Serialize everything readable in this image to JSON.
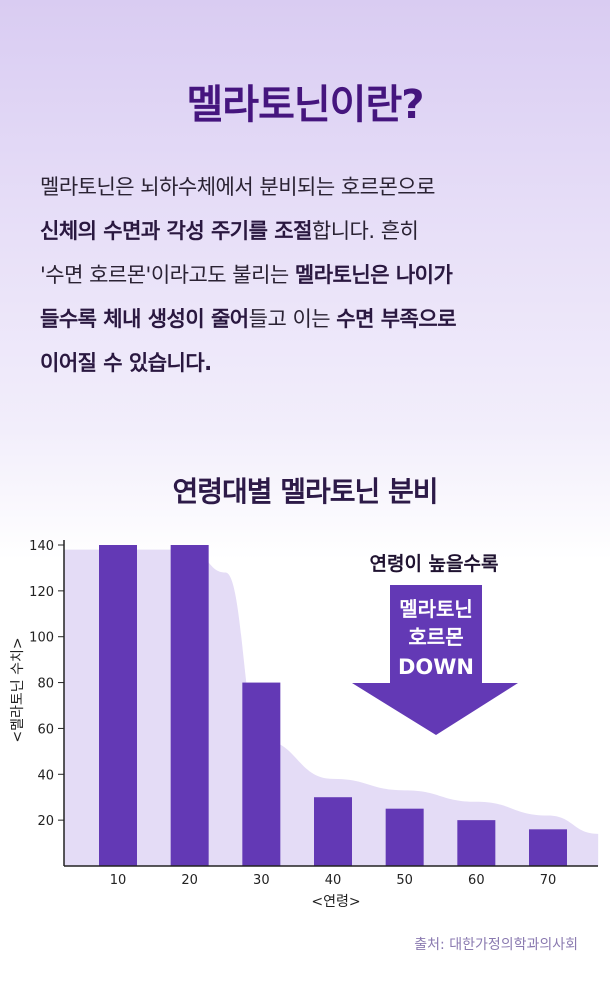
{
  "header": {
    "title": "멜라토닌이란?"
  },
  "description": {
    "lines": [
      [
        {
          "t": "멜라토닌은 뇌하수체에서 분비되는 호르몬으로",
          "b": false
        }
      ],
      [
        {
          "t": "신체의 수면과 각성 주기를 조절",
          "b": true
        },
        {
          "t": "합니다. 흔히",
          "b": false
        }
      ],
      [
        {
          "t": "'수면 호르몬'이라고도 불리는 ",
          "b": false
        },
        {
          "t": "멜라토닌은 나이가",
          "b": true
        }
      ],
      [
        {
          "t": "들수록 체내 생성이 줄어",
          "b": true
        },
        {
          "t": "들고 이는 ",
          "b": false
        },
        {
          "t": "수면 부족으로",
          "b": true
        }
      ],
      [
        {
          "t": "이어질 수 있습니다.",
          "b": true
        }
      ]
    ]
  },
  "chart_title": "연령대별 멜라토닌 분비",
  "annotation": {
    "headline": "연령이 높을수록",
    "arrow_lines": [
      "멜라토닌",
      "호르몬",
      "DOWN"
    ]
  },
  "colors": {
    "bar": "#6339b5",
    "area": "#e4dcf6",
    "arrow": "#6339b5",
    "title": "#45157e"
  },
  "chart_data": {
    "type": "bar",
    "categories": [
      "10",
      "20",
      "30",
      "40",
      "50",
      "60",
      "70"
    ],
    "values": [
      140,
      140,
      80,
      30,
      25,
      20,
      16
    ],
    "xlabel": "<연령>",
    "ylabel": "<멜라토닌 수치>",
    "ylim": [
      0,
      140
    ],
    "yticks": [
      20,
      40,
      60,
      80,
      100,
      120,
      140
    ],
    "background_area": {
      "x": [
        0,
        10,
        20,
        25,
        30,
        40,
        50,
        60,
        70,
        77
      ],
      "y": [
        138,
        138,
        138,
        128,
        55,
        38,
        33,
        28,
        22,
        14
      ]
    },
    "grid": false,
    "legend": "none"
  },
  "source": "출처: 대한가정의학과의사회"
}
